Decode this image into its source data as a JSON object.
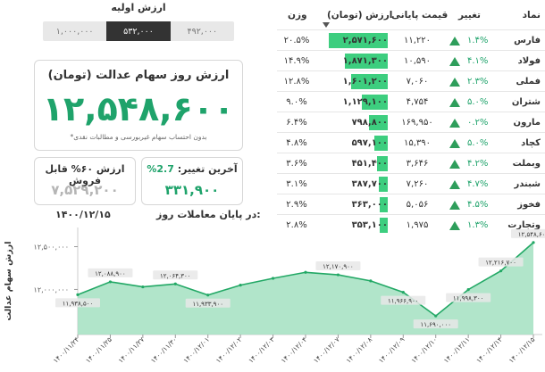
{
  "initial": {
    "title": "ارزش اولیه",
    "options": [
      "۴۹۲,۰۰۰",
      "۵۳۲,۰۰۰",
      "۱,۰۰۰,۰۰۰"
    ],
    "selected_index": 1
  },
  "main": {
    "title": "ارزش روز سهام عدالت (تومان)",
    "value": "۱۲,۵۴۸,۶۰۰",
    "note": "*بدون احتساب سهام غیربورسی و مطالبات نقدی"
  },
  "last_change": {
    "label": "آخرین تغییر:",
    "pct": "2.7%",
    "value": "۳۳۱,۹۰۰"
  },
  "sellable": {
    "label": "ارزش ۶۰% قابل فروش",
    "value": "۷,۵۲۹,۲۰۰"
  },
  "date": {
    "label": "در پایان معاملات روز:",
    "value": "۱۴۰۰/۱۲/۱۵"
  },
  "table": {
    "headers": {
      "name": "نماد",
      "change": "تغییر",
      "price": "قیمت پایانی",
      "value": "ارزش (تومان)",
      "weight": "وزن"
    },
    "rows": [
      {
        "name": "فارس",
        "change": "۱.۴%",
        "price": "۱۱,۲۲۰",
        "value": "۲,۵۷۱,۶۰۰",
        "value_num": 2571600,
        "weight": "۲۰.۵%"
      },
      {
        "name": "فولاد",
        "change": "۴.۱%",
        "price": "۱۰,۵۹۰",
        "value": "۱,۸۷۱,۳۰۰",
        "value_num": 1871300,
        "weight": "۱۴.۹%"
      },
      {
        "name": "فملی",
        "change": "۲.۳%",
        "price": "۷,۰۶۰",
        "value": "۱,۶۰۱,۲۰۰",
        "value_num": 1601200,
        "weight": "۱۲.۸%"
      },
      {
        "name": "شتران",
        "change": "۵.۰%",
        "price": "۴,۷۵۴",
        "value": "۱,۱۲۹,۱۰۰",
        "value_num": 1129100,
        "weight": "۹.۰%"
      },
      {
        "name": "مارون",
        "change": "۰.۲%",
        "price": "۱۶۹,۹۵۰",
        "value": "۷۹۸,۸۰۰",
        "value_num": 798800,
        "weight": "۶.۴%"
      },
      {
        "name": "کچاد",
        "change": "۵.۰%",
        "price": "۱۵,۳۹۰",
        "value": "۵۹۷,۱۰۰",
        "value_num": 597100,
        "weight": "۴.۸%"
      },
      {
        "name": "وبملت",
        "change": "۴.۲%",
        "price": "۳,۶۴۶",
        "value": "۴۵۱,۴۰۰",
        "value_num": 451400,
        "weight": "۳.۶%"
      },
      {
        "name": "شبندر",
        "change": "۴.۷%",
        "price": "۷,۲۶۰",
        "value": "۳۸۷,۷۰۰",
        "value_num": 387700,
        "weight": "۳.۱%"
      },
      {
        "name": "فخوز",
        "change": "۴.۵%",
        "price": "۵,۰۵۶",
        "value": "۳۶۳,۰۰۰",
        "value_num": 363000,
        "weight": "۲.۹%"
      },
      {
        "name": "وتجارت",
        "change": "۱.۳%",
        "price": "۱,۹۷۵",
        "value": "۳۵۳,۱۰۰",
        "value_num": 353100,
        "weight": "۲.۸%"
      }
    ]
  },
  "colors": {
    "accent": "#1fa36b",
    "bar": "#3dce7f",
    "up": "#2e9e5b"
  },
  "chart_data": {
    "type": "area",
    "ylabel": "ارزش سهام عدالت",
    "ylim": [
      11650000,
      12620000
    ],
    "ytick_labels": [
      "۱۲,۰۰۰,۰۰۰",
      "۱۲,۵۰۰,۰۰۰"
    ],
    "ytick_values": [
      12000000,
      12500000
    ],
    "x": [
      "۱۴۰۰/۱۱/۲۴",
      "۱۴۰۰/۱۱/۲۵",
      "۱۴۰۰/۱۱/۲۷",
      "۱۴۰۰/۱۱/۳۰",
      "۱۴۰۰/۱۲/۰۱",
      "۱۴۰۰/۱۲/۰۲",
      "۱۴۰۰/۱۲/۰۳",
      "۱۴۰۰/۱۲/۰۴",
      "۱۴۰۰/۱۲/۰۷",
      "۱۴۰۰/۱۲/۰۸",
      "۱۴۰۰/۱۲/۰۹",
      "۱۴۰۰/۱۲/۱۰",
      "۱۴۰۰/۱۲/۱۱",
      "۱۴۰۰/۱۲/۱۴",
      "۱۴۰۰/۱۲/۱۵"
    ],
    "values": [
      11938500,
      12088900,
      12030000,
      12064300,
      11933900,
      12050000,
      12130000,
      12200000,
      12170900,
      12100000,
      11966900,
      11690000,
      11998300,
      12216700,
      12548600
    ],
    "labels": [
      "۱۱,۹۳۸,۵۰۰",
      "۱۲,۰۸۸,۹۰۰",
      null,
      "۱۲,۰۶۴,۳۰۰",
      "۱۱,۹۳۳,۹۰۰",
      null,
      null,
      null,
      "۱۲,۱۷۰,۹۰۰",
      null,
      "۱۱,۹۶۶,۹۰۰",
      "۱۱,۶۹۰,۰۰۰",
      "۱۱,۹۹۸,۳۰۰",
      "۱۲,۲۱۶,۷۰۰",
      "۱۲,۵۴۸,۶۰۰"
    ],
    "grid": false,
    "legend": "none"
  }
}
